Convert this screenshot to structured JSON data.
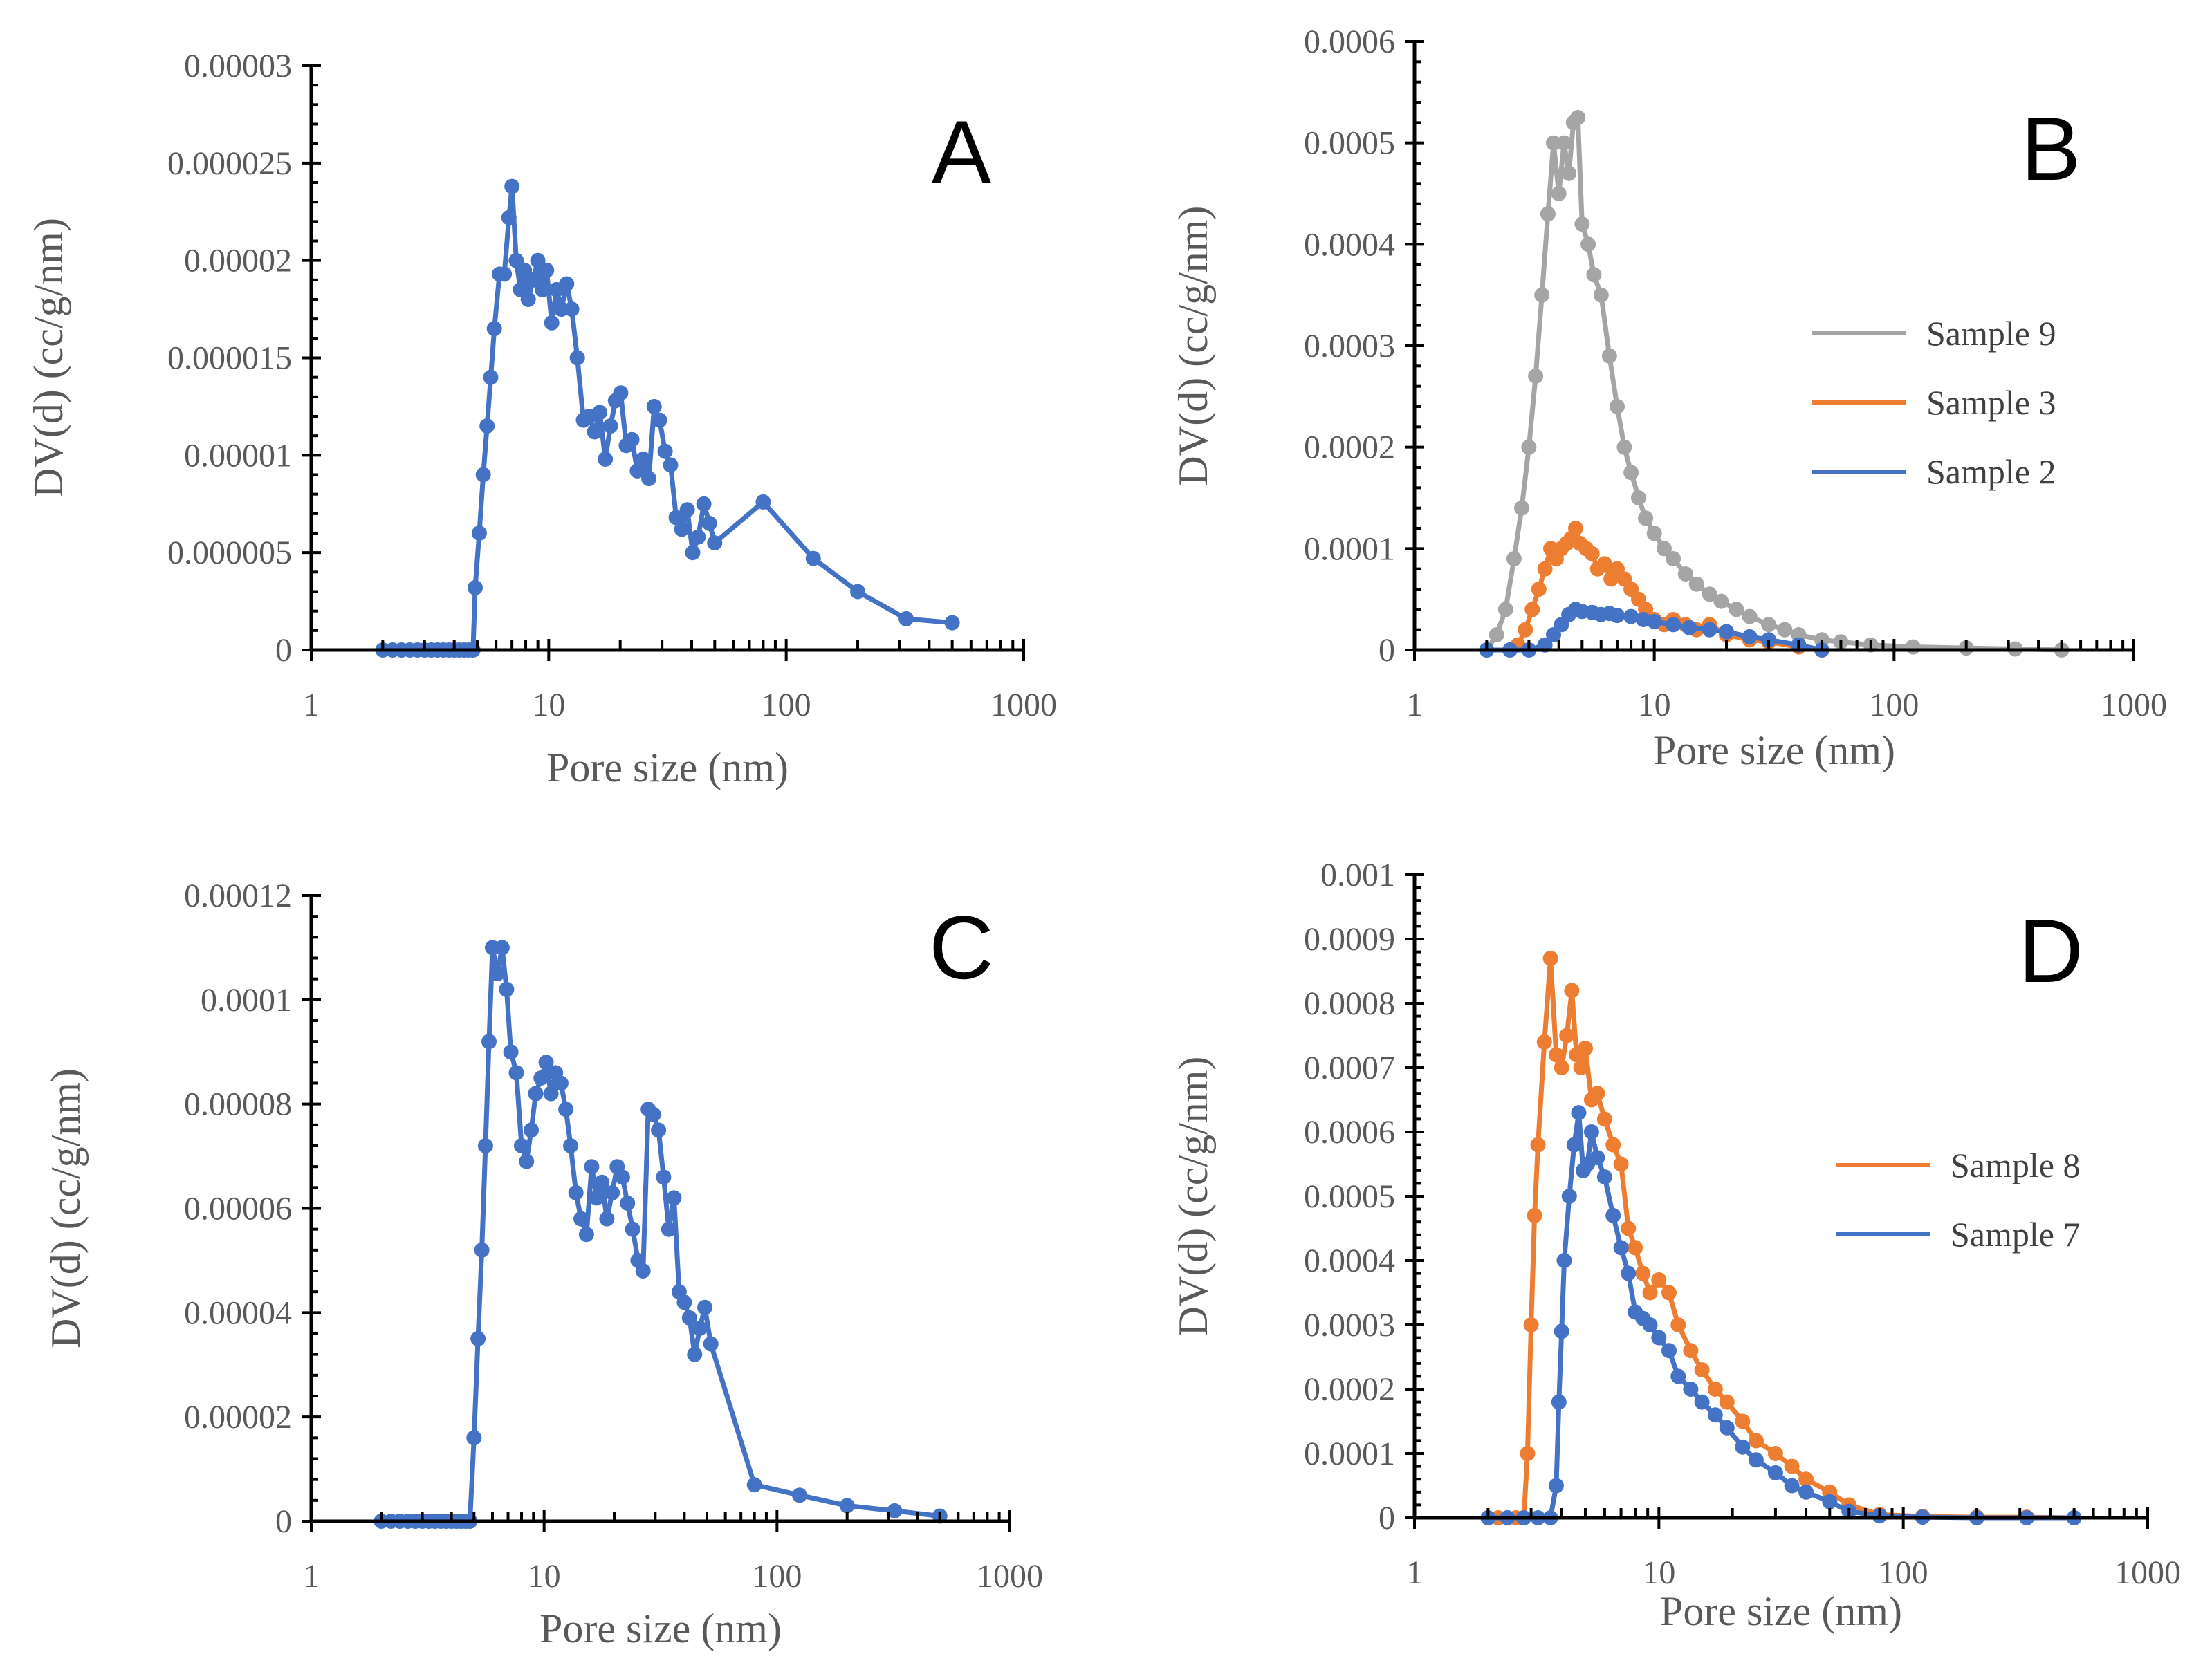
{
  "colors": {
    "blue": "#4472C4",
    "orange": "#ED7D31",
    "gray": "#A5A5A5",
    "text": "#595959"
  },
  "chart_data": [
    {
      "id": "A",
      "type": "line",
      "panel_label": "A",
      "xlabel": "Pore size (nm)",
      "ylabel": "DV(d) (cc/g/nm)",
      "xscale": "log",
      "xlim": [
        1,
        1000
      ],
      "ylim": [
        0,
        3e-05
      ],
      "xticks": [
        1,
        10,
        100,
        1000
      ],
      "xtick_labels": [
        "1",
        "10",
        "100",
        "1000"
      ],
      "yticks": [
        0,
        5e-06,
        1e-05,
        1.5e-05,
        2e-05,
        2.5e-05,
        3e-05
      ],
      "ytick_labels": [
        "0",
        "0.000005",
        "0.00001",
        "0.000015",
        "0.00002",
        "0.000025",
        "0.00003"
      ],
      "legend": null,
      "series": [
        {
          "name": "",
          "color": "#4472C4",
          "x": [
            2.0,
            2.2,
            2.4,
            2.6,
            2.8,
            3.0,
            3.2,
            3.4,
            3.6,
            3.8,
            4.0,
            4.2,
            4.4,
            4.6,
            4.8,
            4.9,
            5.1,
            5.3,
            5.5,
            5.7,
            5.9,
            6.2,
            6.5,
            6.8,
            7.0,
            7.3,
            7.6,
            7.9,
            8.2,
            8.6,
            9.0,
            9.4,
            9.8,
            10.3,
            10.8,
            11.3,
            11.9,
            12.5,
            13.2,
            14.0,
            14.8,
            15.6,
            16.4,
            17.3,
            18.2,
            19.1,
            20.1,
            21.2,
            22.4,
            23.6,
            25.0,
            26.4,
            27.8,
            29.3,
            30.9,
            32.6,
            34.4,
            36.3,
            38.3,
            40.4,
            42.6,
            45.0,
            47.5,
            50.0,
            80.0,
            130.0,
            200.0,
            320.0,
            500.0
          ],
          "y": [
            0,
            0,
            0,
            0,
            0,
            0,
            0,
            0,
            0,
            0,
            0,
            0,
            0,
            0,
            0,
            3.2e-06,
            6e-06,
            9e-06,
            1.15e-05,
            1.4e-05,
            1.65e-05,
            1.93e-05,
            1.93e-05,
            2.22e-05,
            2.38e-05,
            2e-05,
            1.85e-05,
            1.95e-05,
            1.8e-05,
            1.9e-05,
            2e-05,
            1.85e-05,
            1.95e-05,
            1.68e-05,
            1.85e-05,
            1.75e-05,
            1.88e-05,
            1.75e-05,
            1.5e-05,
            1.18e-05,
            1.2e-05,
            1.12e-05,
            1.22e-05,
            9.8e-06,
            1.15e-05,
            1.28e-05,
            1.32e-05,
            1.05e-05,
            1.08e-05,
            9.2e-06,
            9.8e-06,
            8.8e-06,
            1.25e-05,
            1.18e-05,
            1.02e-05,
            9.5e-06,
            6.8e-06,
            6.2e-06,
            7.2e-06,
            5e-06,
            5.8e-06,
            7.5e-06,
            6.5e-06,
            5.5e-06,
            7.6e-06,
            4.7e-06,
            3e-06,
            1.6e-06,
            1.4e-06
          ]
        }
      ]
    },
    {
      "id": "B",
      "type": "line",
      "panel_label": "B",
      "xlabel": "Pore size (nm)",
      "ylabel": "DV(d) (cc/g/nm)",
      "xscale": "log",
      "xlim": [
        1,
        1000
      ],
      "ylim": [
        0,
        0.0006
      ],
      "xticks": [
        1,
        10,
        100,
        1000
      ],
      "xtick_labels": [
        "1",
        "10",
        "100",
        "1000"
      ],
      "yticks": [
        0,
        0.0001,
        0.0002,
        0.0003,
        0.0004,
        0.0005,
        0.0006
      ],
      "ytick_labels": [
        "0",
        "0.0001",
        "0.0002",
        "0.0003",
        "0.0004",
        "0.0005",
        "0.0006"
      ],
      "legend": {
        "position": "right",
        "entries": [
          "Sample 9",
          "Sample 3",
          "Sample 2"
        ]
      },
      "series": [
        {
          "name": "Sample 9",
          "color": "#A5A5A5",
          "x": [
            2.0,
            2.2,
            2.4,
            2.6,
            2.8,
            3.0,
            3.2,
            3.4,
            3.6,
            3.8,
            4.0,
            4.2,
            4.4,
            4.6,
            4.8,
            5.0,
            5.3,
            5.6,
            6.0,
            6.5,
            7.0,
            7.5,
            8.0,
            8.6,
            9.2,
            10.0,
            11.0,
            12.0,
            13.5,
            15.0,
            17.0,
            19.0,
            22.0,
            25.0,
            30.0,
            35.0,
            40.0,
            50.0,
            60.0,
            80.0,
            120.0,
            200.0,
            320.0,
            500.0
          ],
          "y": [
            0,
            1.5e-05,
            4e-05,
            9e-05,
            0.00014,
            0.0002,
            0.00027,
            0.00035,
            0.00043,
            0.0005,
            0.00045,
            0.0005,
            0.00047,
            0.00052,
            0.000525,
            0.00042,
            0.0004,
            0.00037,
            0.00035,
            0.00029,
            0.00024,
            0.0002,
            0.000175,
            0.00015,
            0.00013,
            0.000115,
            0.0001,
            9e-05,
            7.5e-05,
            6.5e-05,
            5.5e-05,
            4.8e-05,
            4e-05,
            3.3e-05,
            2.5e-05,
            2e-05,
            1.5e-05,
            1e-05,
            8e-06,
            5e-06,
            3e-06,
            2e-06,
            1e-06,
            0
          ]
        },
        {
          "name": "Sample 3",
          "color": "#ED7D31",
          "x": [
            2.5,
            2.7,
            2.9,
            3.1,
            3.3,
            3.5,
            3.7,
            3.9,
            4.1,
            4.3,
            4.5,
            4.7,
            4.9,
            5.2,
            5.5,
            5.8,
            6.2,
            6.6,
            7.0,
            7.5,
            8.0,
            8.6,
            9.2,
            10.0,
            11.0,
            12.0,
            13.5,
            15.0,
            17.0,
            20.0,
            25.0,
            30.0,
            40.0,
            50.0
          ],
          "y": [
            0,
            5e-06,
            2e-05,
            4e-05,
            6e-05,
            8e-05,
            0.0001,
            9e-05,
            0.0001,
            0.000105,
            0.00011,
            0.00012,
            0.000105,
            0.0001,
            9.5e-05,
            8e-05,
            8.5e-05,
            7e-05,
            8e-05,
            7e-05,
            6e-05,
            5e-05,
            4e-05,
            3e-05,
            2.5e-05,
            3e-05,
            2.5e-05,
            2e-05,
            2.5e-05,
            1.5e-05,
            1e-05,
            8e-06,
            3e-06,
            0
          ]
        },
        {
          "name": "Sample 2",
          "color": "#4472C4",
          "x": [
            2.0,
            2.5,
            3.0,
            3.5,
            3.8,
            4.1,
            4.4,
            4.7,
            5.0,
            5.5,
            6.0,
            6.5,
            7.0,
            8.0,
            9.0,
            10.0,
            12.0,
            14.0,
            17.0,
            20.0,
            25.0,
            30.0,
            40.0,
            50.0
          ],
          "y": [
            0,
            0,
            0,
            5e-06,
            1.5e-05,
            2.5e-05,
            3.5e-05,
            4e-05,
            3.8e-05,
            3.7e-05,
            3.5e-05,
            3.6e-05,
            3.4e-05,
            3.3e-05,
            3e-05,
            2.8e-05,
            2.5e-05,
            2.2e-05,
            2e-05,
            1.8e-05,
            1.3e-05,
            1e-05,
            5e-06,
            0
          ]
        }
      ]
    },
    {
      "id": "C",
      "type": "line",
      "panel_label": "C",
      "xlabel": "Pore size (nm)",
      "ylabel": "DV(d) (cc/g/nm)",
      "xscale": "log",
      "xlim": [
        1,
        1000
      ],
      "ylim": [
        0,
        0.00012
      ],
      "xticks": [
        1,
        10,
        100,
        1000
      ],
      "xtick_labels": [
        "1",
        "10",
        "100",
        "1000"
      ],
      "yticks": [
        0,
        2e-05,
        4e-05,
        6e-05,
        8e-05,
        0.0001,
        0.00012
      ],
      "ytick_labels": [
        "0",
        "0.00002",
        "0.00004",
        "0.00006",
        "0.00008",
        "0.0001",
        "0.00012"
      ],
      "legend": null,
      "series": [
        {
          "name": "",
          "color": "#4472C4",
          "x": [
            2.0,
            2.2,
            2.4,
            2.6,
            2.8,
            3.0,
            3.2,
            3.4,
            3.6,
            3.8,
            4.0,
            4.2,
            4.4,
            4.6,
            4.8,
            5.0,
            5.2,
            5.4,
            5.6,
            5.8,
            6.0,
            6.3,
            6.6,
            6.9,
            7.2,
            7.6,
            8.0,
            8.4,
            8.8,
            9.2,
            9.7,
            10.2,
            10.7,
            11.2,
            11.8,
            12.4,
            13.0,
            13.7,
            14.4,
            15.2,
            16.0,
            16.8,
            17.7,
            18.6,
            19.6,
            20.6,
            21.7,
            22.8,
            24.0,
            25.3,
            26.6,
            28.0,
            29.5,
            31.0,
            32.6,
            34.3,
            36.1,
            38.0,
            40.0,
            42.1,
            44.3,
            46.6,
            49.0,
            52.0,
            80.0,
            125.0,
            200.0,
            320.0,
            500.0
          ],
          "y": [
            0,
            0,
            0,
            0,
            0,
            0,
            0,
            0,
            0,
            0,
            0,
            0,
            0,
            0,
            0,
            1.6e-05,
            3.5e-05,
            5.2e-05,
            7.2e-05,
            9.2e-05,
            0.00011,
            0.000105,
            0.00011,
            0.000102,
            9e-05,
            8.6e-05,
            7.2e-05,
            6.9e-05,
            7.5e-05,
            8.2e-05,
            8.5e-05,
            8.8e-05,
            8.2e-05,
            8.6e-05,
            8.4e-05,
            7.9e-05,
            7.2e-05,
            6.3e-05,
            5.8e-05,
            5.5e-05,
            6.8e-05,
            6.2e-05,
            6.5e-05,
            5.8e-05,
            6.3e-05,
            6.8e-05,
            6.6e-05,
            6.1e-05,
            5.6e-05,
            5e-05,
            4.8e-05,
            7.9e-05,
            7.8e-05,
            7.5e-05,
            6.6e-05,
            5.6e-05,
            6.2e-05,
            4.4e-05,
            4.2e-05,
            3.9e-05,
            3.2e-05,
            3.7e-05,
            4.1e-05,
            3.4e-05,
            7e-06,
            5e-06,
            3e-06,
            2e-06,
            1e-06
          ]
        }
      ]
    },
    {
      "id": "D",
      "type": "line",
      "panel_label": "D",
      "xlabel": "Pore size (nm)",
      "ylabel": "DV(d) (cc/g/nm)",
      "xscale": "log",
      "xlim": [
        1,
        1000
      ],
      "ylim": [
        0,
        0.001
      ],
      "xticks": [
        1,
        10,
        100,
        1000
      ],
      "xtick_labels": [
        "1",
        "10",
        "100",
        "1000"
      ],
      "yticks": [
        0,
        0.0001,
        0.0002,
        0.0003,
        0.0004,
        0.0005,
        0.0006,
        0.0007,
        0.0008,
        0.0009,
        0.001
      ],
      "ytick_labels": [
        "0",
        "0.0001",
        "0.0002",
        "0.0003",
        "0.0004",
        "0.0005",
        "0.0006",
        "0.0007",
        "0.0008",
        "0.0009",
        "0.001"
      ],
      "legend": {
        "position": "right",
        "entries": [
          "Sample 8",
          "Sample 7"
        ]
      },
      "series": [
        {
          "name": "Sample 8",
          "color": "#ED7D31",
          "x": [
            2.0,
            2.2,
            2.4,
            2.6,
            2.8,
            2.9,
            3.0,
            3.1,
            3.2,
            3.4,
            3.6,
            3.8,
            4.0,
            4.2,
            4.4,
            4.6,
            4.8,
            5.0,
            5.3,
            5.6,
            6.0,
            6.5,
            7.0,
            7.5,
            8.0,
            8.6,
            9.2,
            10.0,
            11.0,
            12.0,
            13.5,
            15.0,
            17.0,
            19.0,
            22.0,
            25.0,
            30.0,
            35.0,
            40.0,
            50.0,
            60.0,
            80.0,
            120.0,
            200.0,
            320.0,
            500.0
          ],
          "y": [
            0,
            0,
            0,
            0,
            0,
            0.0001,
            0.0003,
            0.00047,
            0.00058,
            0.00074,
            0.00087,
            0.00072,
            0.0007,
            0.00075,
            0.00082,
            0.00072,
            0.0007,
            0.00073,
            0.00065,
            0.00066,
            0.00062,
            0.00058,
            0.00055,
            0.00045,
            0.00042,
            0.00038,
            0.00035,
            0.00037,
            0.00035,
            0.0003,
            0.00026,
            0.00023,
            0.0002,
            0.00018,
            0.00015,
            0.00012,
            0.0001,
            8e-05,
            6e-05,
            4e-05,
            2e-05,
            5e-06,
            2e-06,
            1e-06,
            1e-06,
            0
          ]
        },
        {
          "name": "Sample 7",
          "color": "#4472C4",
          "x": [
            2.0,
            2.4,
            2.8,
            3.2,
            3.6,
            3.8,
            3.9,
            4.0,
            4.1,
            4.3,
            4.5,
            4.7,
            4.9,
            5.1,
            5.3,
            5.6,
            6.0,
            6.5,
            7.0,
            7.5,
            8.0,
            8.6,
            9.2,
            10.0,
            11.0,
            12.0,
            13.5,
            15.0,
            17.0,
            19.0,
            22.0,
            25.0,
            30.0,
            35.0,
            40.0,
            50.0,
            60.0,
            80.0,
            120.0,
            200.0,
            320.0,
            500.0
          ],
          "y": [
            0,
            0,
            0,
            0,
            0,
            5e-05,
            0.00018,
            0.00029,
            0.0004,
            0.0005,
            0.00058,
            0.00063,
            0.00054,
            0.00055,
            0.0006,
            0.00056,
            0.00053,
            0.00047,
            0.00042,
            0.00038,
            0.00032,
            0.00031,
            0.0003,
            0.00028,
            0.00026,
            0.00022,
            0.0002,
            0.00018,
            0.00016,
            0.00014,
            0.00011,
            9e-05,
            7e-05,
            5e-05,
            4e-05,
            2.5e-05,
            1e-05,
            3e-06,
            1e-06,
            0,
            0,
            0
          ]
        }
      ]
    }
  ]
}
